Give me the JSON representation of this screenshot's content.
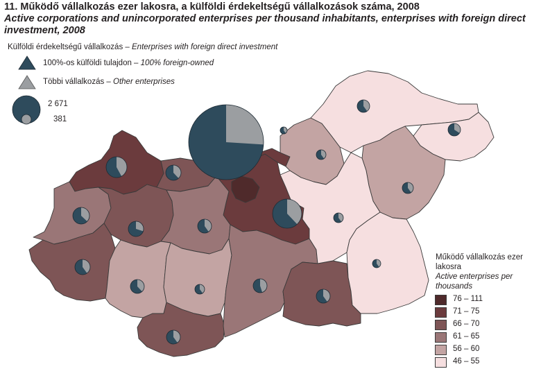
{
  "title": {
    "hu": "11. Működő vállalkozás ezer lakosra, a külföldi érdekeltségű vállalkozások száma, 2008",
    "en": "Active corporations and unincorporated enterprises per thousand inhabitants, enterprises with foreign direct investment,  2008"
  },
  "symbol_key": {
    "heading_hu": "Külföldi érdekeltségű vállalkozás",
    "heading_en": "Enterprises with foreign direct investment",
    "dash": " – ",
    "foreign_hu": "100%-os külföldi tulajdon",
    "foreign_en": "100% foreign-owned",
    "other_hu": "Többi vállalkozás",
    "other_en": "Other enterprises",
    "size_max": "2 671",
    "size_min": "381"
  },
  "legend": {
    "title_hu": "Működő vállalkozás ezer lakosra",
    "title_en": "Active enterprises per thousands",
    "classes": [
      {
        "label": "76 – 111",
        "color": "#4f2a2b"
      },
      {
        "label": "71 – 75",
        "color": "#6b3b3d"
      },
      {
        "label": "66 – 70",
        "color": "#7e5556"
      },
      {
        "label": "61 – 65",
        "color": "#9a7677"
      },
      {
        "label": "56 – 60",
        "color": "#c3a4a3"
      },
      {
        "label": "46 – 55",
        "color": "#f6dfe0"
      }
    ]
  },
  "colors": {
    "foreign": "#2e4b5c",
    "other": "#9b9ea1",
    "county_border": "#3a3a3a"
  }
}
